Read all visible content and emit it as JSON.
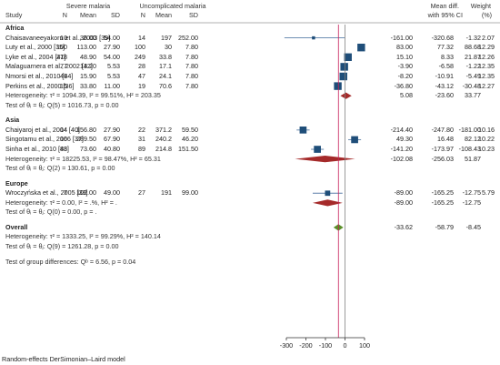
{
  "chart_data": {
    "type": "forest",
    "headers": {
      "study": "Study",
      "severe": "Severe malaria",
      "uncomplicated": "Uncomplicated malaria",
      "n": "N",
      "mean": "Mean",
      "sd": "SD",
      "effect": "Mean diff.",
      "effect_sub": "with 95% CI",
      "weight": "Weight",
      "weight_sub": "(%)"
    },
    "x_ticks": [
      -300,
      -200,
      -100,
      0,
      100
    ],
    "x_tick_labels": [
      "-300",
      "-200",
      "-100",
      "0",
      "100"
    ],
    "xlim": [
      -310,
      120
    ],
    "overall_line_value": -33.62,
    "groups": [
      {
        "name": "Africa",
        "studies": [
          {
            "study": "Chaisavaneeyakorn et al., 2003 [39]",
            "n1": "10",
            "m1": "36.00",
            "sd1": "54.00",
            "n2": "14",
            "m2": "197",
            "sd2": "252.00",
            "md": -161.0,
            "lo": -320.68,
            "hi": -1.32,
            "md_s": "-161.00",
            "lo_s": "-320.68",
            "hi_s": "-1.32",
            "w": "2.07"
          },
          {
            "study": "Luty et al., 2000 [35]",
            "n1": "100",
            "m1": "113.00",
            "sd1": "27.90",
            "n2": "100",
            "m2": "30",
            "sd2": "7.80",
            "md": 83.0,
            "lo": 77.32,
            "hi": 88.68,
            "md_s": "83.00",
            "lo_s": "77.32",
            "hi_s": "88.68",
            "w": "12.29"
          },
          {
            "study": "Lyke et al., 2004 [41]",
            "n1": "278",
            "m1": "48.90",
            "sd1": "54.00",
            "n2": "249",
            "m2": "33.8",
            "sd2": "7.80",
            "md": 15.1,
            "lo": 8.33,
            "hi": 21.87,
            "md_s": "15.10",
            "lo_s": "8.33",
            "hi_s": "21.87",
            "w": "12.26"
          },
          {
            "study": "Malaguarnera et al., 2002 [42]",
            "n1": "77",
            "m1": "13.20",
            "sd1": "5.53",
            "n2": "28",
            "m2": "17.1",
            "sd2": "7.80",
            "md": -3.9,
            "lo": -6.58,
            "hi": -1.22,
            "md_s": "-3.90",
            "lo_s": "-6.58",
            "hi_s": "-1.22",
            "w": "12.35"
          },
          {
            "study": "Nmorsi et al., 2010 [44]",
            "n1": "49",
            "m1": "15.90",
            "sd1": "5.53",
            "n2": "47",
            "m2": "24.1",
            "sd2": "7.80",
            "md": -8.2,
            "lo": -10.91,
            "hi": -5.49,
            "md_s": "-8.20",
            "lo_s": "-10.91",
            "hi_s": "-5.49",
            "w": "12.35"
          },
          {
            "study": "Perkins et al., 2000 [36]",
            "n1": "15",
            "m1": "33.80",
            "sd1": "11.00",
            "n2": "19",
            "m2": "70.6",
            "sd2": "7.80",
            "md": -36.8,
            "lo": -43.12,
            "hi": -30.48,
            "md_s": "-36.80",
            "lo_s": "-43.12",
            "hi_s": "-30.48",
            "w": "12.27"
          }
        ],
        "heterogeneity": "Heterogeneity: τ² = 1094.39, I² = 99.51%, H² = 203.35",
        "pooled": {
          "md": 5.08,
          "lo": -23.6,
          "hi": 33.77,
          "md_s": "5.08",
          "lo_s": "-23.60",
          "hi_s": "33.77"
        },
        "test": "Test of θᵢ = θⱼ: Q(5) = 1016.73, p = 0.00"
      },
      {
        "name": "Asia",
        "studies": [
          {
            "study": "Chaiyaroj et al., 2004 [40]",
            "n1": "14",
            "m1": "156.80",
            "sd1": "27.90",
            "n2": "22",
            "m2": "371.2",
            "sd2": "59.50",
            "md": -214.4,
            "lo": -247.8,
            "hi": -181.0,
            "md_s": "-214.40",
            "lo_s": "-247.80",
            "hi_s": "-181.00",
            "w": "10.16"
          },
          {
            "study": "Singotamu et al., 2006 [37]",
            "n1": "16",
            "m1": "289.50",
            "sd1": "67.90",
            "n2": "31",
            "m2": "240.2",
            "sd2": "46.20",
            "md": 49.3,
            "lo": 16.48,
            "hi": 82.12,
            "md_s": "49.30",
            "lo_s": "16.48",
            "hi_s": "82.12",
            "w": "10.22"
          },
          {
            "study": "Sinha et al., 2010 [43]",
            "n1": "88",
            "m1": "73.60",
            "sd1": "40.80",
            "n2": "89",
            "m2": "214.8",
            "sd2": "151.50",
            "md": -141.2,
            "lo": -173.97,
            "hi": -108.43,
            "md_s": "-141.20",
            "lo_s": "-173.97",
            "hi_s": "-108.43",
            "w": "10.23"
          }
        ],
        "heterogeneity": "Heterogeneity: τ² = 18225.53, I² = 98.47%, H² = 65.31",
        "pooled": {
          "md": -102.08,
          "lo": -256.03,
          "hi": 51.87,
          "md_s": "-102.08",
          "lo_s": "-256.03",
          "hi_s": "51.87"
        },
        "test": "Test of θᵢ = θⱼ: Q(2) = 130.61, p = 0.00"
      },
      {
        "name": "Europe",
        "studies": [
          {
            "study": "Wroczyńska et al., 2005 [38]",
            "n1": "7",
            "m1": "102.00",
            "sd1": "49.00",
            "n2": "27",
            "m2": "191",
            "sd2": "99.00",
            "md": -89.0,
            "lo": -165.25,
            "hi": -12.75,
            "md_s": "-89.00",
            "lo_s": "-165.25",
            "hi_s": "-12.75",
            "w": "5.79"
          }
        ],
        "heterogeneity": "Heterogeneity: τ² = 0.00, I² = .%, H² = .",
        "pooled": {
          "md": -89.0,
          "lo": -165.25,
          "hi": -12.75,
          "md_s": "-89.00",
          "lo_s": "-165.25",
          "hi_s": "-12.75"
        },
        "test": "Test of θᵢ = θⱼ: Q(0) = 0.00, p = ."
      }
    ],
    "overall": {
      "name": "Overall",
      "heterogeneity": "Heterogeneity: τ² = 1333.25, I² = 99.29%, H² = 140.14",
      "pooled": {
        "md": -33.62,
        "lo": -58.79,
        "hi": -8.45,
        "md_s": "-33.62",
        "lo_s": "-58.79",
        "hi_s": "-8.45"
      },
      "test": "Test of θᵢ = θⱼ: Q(9) = 1261.28, p = 0.00"
    },
    "group_test": "Test of group differences: Qᵇ = 6.56, p = 0.04",
    "footnote": "Random-effects DerSimonian–Laird model",
    "colors": {
      "study_marker": "#1f4e79",
      "ci_line": "#5a7fa8",
      "subgroup_diamond": "#a52a2a",
      "overall_diamond": "#5a8f29",
      "overall_line": "#c81e5a",
      "null_line": "#808080"
    }
  }
}
